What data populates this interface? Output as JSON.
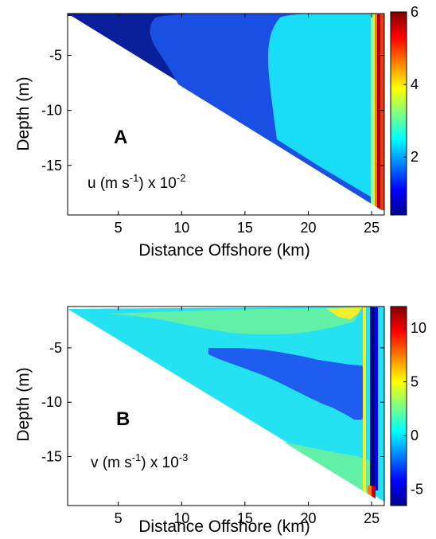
{
  "chart_data": [
    {
      "type": "heatmap",
      "panel_label": "A",
      "annotation": {
        "var": "u",
        "unit_main": "(m s",
        "unit_exp": "-1",
        "scale": ") x 10",
        "scale_exp": "-2"
      },
      "xlabel": "Distance Offshore (km)",
      "ylabel": "Depth (m)",
      "xlim": [
        1,
        26
      ],
      "ylim": [
        -19.5,
        -1.2
      ],
      "xticks": [
        5,
        10,
        15,
        20,
        25
      ],
      "yticks": [
        -5,
        -10,
        -15
      ],
      "colorbar": {
        "min": 0.4,
        "max": 6,
        "ticks": [
          2,
          4,
          6
        ]
      },
      "bathymetry": {
        "shore_x_km": 1,
        "shore_depth_m": -1.2,
        "offshore_x_km": 26,
        "offshore_depth_m": -19.5
      },
      "regions": [
        {
          "name": "dark blue",
          "approx_value": 0.6,
          "color": "#0a1f9a"
        },
        {
          "name": "mid blue",
          "approx_value": 1.2,
          "color": "#1a4fe3"
        },
        {
          "name": "cyan",
          "approx_value": 2.0,
          "color": "#19dcf6"
        },
        {
          "name": "boundary maximum",
          "approx_value": 6.0,
          "color": "#b30000"
        }
      ]
    },
    {
      "type": "heatmap",
      "panel_label": "B",
      "annotation": {
        "var": "v",
        "unit_main": "(m s",
        "unit_exp": "-1",
        "scale": ") x 10",
        "scale_exp": "-3"
      },
      "xlabel": "Distance Offshore (km)",
      "ylabel": "Depth (m)",
      "xlim": [
        1,
        26
      ],
      "ylim": [
        -19.5,
        -1.2
      ],
      "xticks": [
        5,
        10,
        15,
        20,
        25
      ],
      "yticks": [
        -5,
        -10,
        -15
      ],
      "colorbar": {
        "min": -6.5,
        "max": 12,
        "ticks": [
          -5,
          0,
          5,
          10
        ]
      },
      "bathymetry": {
        "shore_x_km": 1,
        "shore_depth_m": -1.2,
        "offshore_x_km": 26,
        "offshore_depth_m": -19.5
      },
      "regions": [
        {
          "name": "cyan background",
          "approx_value": -0.5,
          "color": "#25e2f2"
        },
        {
          "name": "green bands",
          "approx_value": 2.0,
          "color": "#61f0a6"
        },
        {
          "name": "blue core",
          "approx_value": -3.0,
          "color": "#1f5df0"
        },
        {
          "name": "boundary extremes",
          "approx_value": 11.0,
          "color": "#c00000"
        }
      ]
    }
  ],
  "colormap": [
    "#00008f",
    "#0000ff",
    "#0080ff",
    "#00ffff",
    "#80ff80",
    "#ffff00",
    "#ff8000",
    "#ff0000",
    "#800000"
  ]
}
